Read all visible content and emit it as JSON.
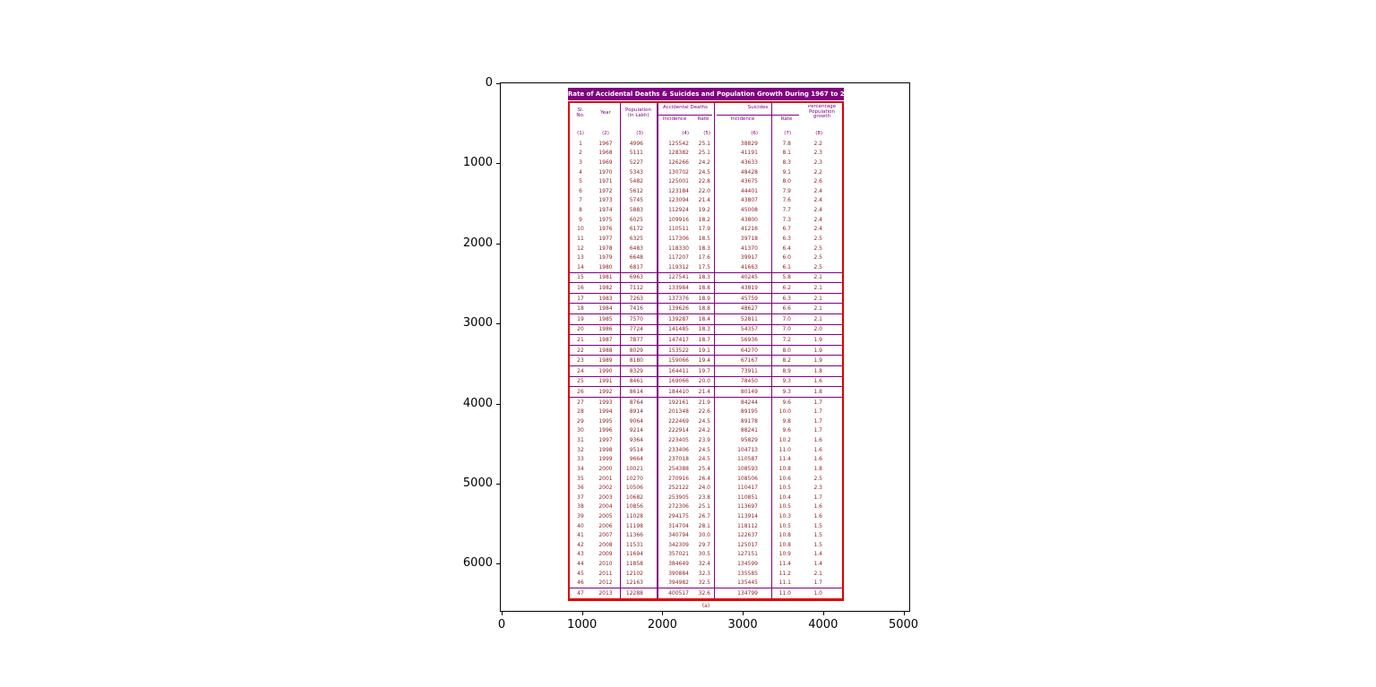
{
  "figure": {
    "background": "#ffffff",
    "axes": {
      "x_ticks": [
        "0",
        "1000",
        "2000",
        "3000",
        "4000",
        "5000"
      ],
      "y_ticks": [
        "0",
        "1000",
        "2000",
        "3000",
        "4000",
        "5000",
        "6000"
      ]
    }
  },
  "table": {
    "caption": "(a)",
    "colors": {
      "title_bg": "#800080",
      "title_text": "#ffffff",
      "outer_border": "#e00000",
      "grid_lines": "#800080",
      "data_text": "#8b1f1f",
      "header_text": "#800080"
    },
    "header": {
      "sl_no_l1": "Sl.",
      "sl_no_l2": "No.",
      "year": "Year",
      "population_l1": "Population",
      "population_l2": "(in Lakh)",
      "accidental_group": "Accidental Deaths",
      "suicides_group": "Suicides",
      "incidence_acc": "Incidence",
      "rate_acc": "Rate",
      "incidence_sui": "Incidence",
      "rate_sui": "Rate",
      "growth_l1": "Percentage",
      "growth_l2": "Population",
      "growth_l3": "growth",
      "col_numbers": [
        "(1)",
        "(2)",
        "(3)",
        "(4)",
        "(5)",
        "(6)",
        "(7)",
        "(8)"
      ]
    },
    "row_separators_below": [
      14,
      15,
      16,
      17,
      18,
      19,
      20,
      21,
      22,
      23,
      24,
      25,
      26
    ],
    "last_row_top_line": true
  },
  "chart_data": {
    "type": "table",
    "title": "Rate of Accidental Deaths & Suicides and Population Growth During 1967 to 2013",
    "columns": [
      "Sl. No.",
      "Year",
      "Population (in Lakh)",
      "Accidental Deaths Incidence",
      "Accidental Deaths Rate",
      "Suicides Incidence",
      "Suicides Rate",
      "Percentage Population growth"
    ],
    "x_axis_ticks": [
      0,
      1000,
      2000,
      3000,
      4000,
      5000
    ],
    "y_axis_ticks": [
      0,
      1000,
      2000,
      3000,
      4000,
      5000,
      6000
    ],
    "rows": [
      [
        "1",
        "1967",
        "4996",
        "125542",
        "25.1",
        "38829",
        "7.8",
        "2.2"
      ],
      [
        "2",
        "1968",
        "5111",
        "128382",
        "25.1",
        "41191",
        "8.1",
        "2.3"
      ],
      [
        "3",
        "1969",
        "5227",
        "126266",
        "24.2",
        "43633",
        "8.3",
        "2.3"
      ],
      [
        "4",
        "1970",
        "5343",
        "130702",
        "24.5",
        "48428",
        "9.1",
        "2.2"
      ],
      [
        "5",
        "1971",
        "5482",
        "125001",
        "22.8",
        "43675",
        "8.0",
        "2.6"
      ],
      [
        "6",
        "1972",
        "5612",
        "123184",
        "22.0",
        "44401",
        "7.9",
        "2.4"
      ],
      [
        "7",
        "1973",
        "5745",
        "123094",
        "21.4",
        "43807",
        "7.6",
        "2.4"
      ],
      [
        "8",
        "1974",
        "5883",
        "112924",
        "19.2",
        "45008",
        "7.7",
        "2.4"
      ],
      [
        "9",
        "1975",
        "6025",
        "109916",
        "18.2",
        "43800",
        "7.3",
        "2.4"
      ],
      [
        "10",
        "1976",
        "6172",
        "110511",
        "17.9",
        "41216",
        "6.7",
        "2.4"
      ],
      [
        "11",
        "1977",
        "6325",
        "117306",
        "18.5",
        "39718",
        "6.3",
        "2.5"
      ],
      [
        "12",
        "1978",
        "6483",
        "118330",
        "18.3",
        "41370",
        "6.4",
        "2.5"
      ],
      [
        "13",
        "1979",
        "6648",
        "117207",
        "17.6",
        "39917",
        "6.0",
        "2.5"
      ],
      [
        "14",
        "1980",
        "6817",
        "119312",
        "17.5",
        "41663",
        "6.1",
        "2.5"
      ],
      [
        "15",
        "1981",
        "6963",
        "127541",
        "18.3",
        "40245",
        "5.8",
        "2.1"
      ],
      [
        "16",
        "1982",
        "7112",
        "133984",
        "18.8",
        "43819",
        "6.2",
        "2.1"
      ],
      [
        "17",
        "1983",
        "7263",
        "137376",
        "18.9",
        "45759",
        "6.3",
        "2.1"
      ],
      [
        "18",
        "1984",
        "7416",
        "139626",
        "18.8",
        "48627",
        "6.6",
        "2.1"
      ],
      [
        "19",
        "1985",
        "7570",
        "139287",
        "18.4",
        "52811",
        "7.0",
        "2.1"
      ],
      [
        "20",
        "1986",
        "7724",
        "141485",
        "18.3",
        "54357",
        "7.0",
        "2.0"
      ],
      [
        "21",
        "1987",
        "7877",
        "147417",
        "18.7",
        "56936",
        "7.2",
        "1.9"
      ],
      [
        "22",
        "1988",
        "8029",
        "153522",
        "19.1",
        "64270",
        "8.0",
        "1.9"
      ],
      [
        "23",
        "1989",
        "8180",
        "159066",
        "19.4",
        "67167",
        "8.2",
        "1.9"
      ],
      [
        "24",
        "1990",
        "8329",
        "164411",
        "19.7",
        "73911",
        "8.9",
        "1.8"
      ],
      [
        "25",
        "1991",
        "8461",
        "169066",
        "20.0",
        "78450",
        "9.3",
        "1.6"
      ],
      [
        "26",
        "1992",
        "8614",
        "184410",
        "21.4",
        "80149",
        "9.3",
        "1.8"
      ],
      [
        "27",
        "1993",
        "8764",
        "192161",
        "21.9",
        "84244",
        "9.6",
        "1.7"
      ],
      [
        "28",
        "1994",
        "8914",
        "201348",
        "22.6",
        "89195",
        "10.0",
        "1.7"
      ],
      [
        "29",
        "1995",
        "9064",
        "222469",
        "24.5",
        "89178",
        "9.8",
        "1.7"
      ],
      [
        "30",
        "1996",
        "9214",
        "222914",
        "24.2",
        "88241",
        "9.6",
        "1.7"
      ],
      [
        "31",
        "1997",
        "9364",
        "223405",
        "23.9",
        "95829",
        "10.2",
        "1.6"
      ],
      [
        "32",
        "1998",
        "9514",
        "233406",
        "24.5",
        "104713",
        "11.0",
        "1.6"
      ],
      [
        "33",
        "1999",
        "9664",
        "237018",
        "24.5",
        "110587",
        "11.4",
        "1.6"
      ],
      [
        "34",
        "2000",
        "10021",
        "254388",
        "25.4",
        "108593",
        "10.8",
        "1.8"
      ],
      [
        "35",
        "2001",
        "10270",
        "270916",
        "26.4",
        "108506",
        "10.6",
        "2.5"
      ],
      [
        "36",
        "2002",
        "10506",
        "252122",
        "24.0",
        "110417",
        "10.5",
        "2.3"
      ],
      [
        "37",
        "2003",
        "10682",
        "253905",
        "23.8",
        "110851",
        "10.4",
        "1.7"
      ],
      [
        "38",
        "2004",
        "10856",
        "272306",
        "25.1",
        "113697",
        "10.5",
        "1.6"
      ],
      [
        "39",
        "2005",
        "11028",
        "294175",
        "26.7",
        "113914",
        "10.3",
        "1.6"
      ],
      [
        "40",
        "2006",
        "11198",
        "314704",
        "28.1",
        "118112",
        "10.5",
        "1.5"
      ],
      [
        "41",
        "2007",
        "11366",
        "340794",
        "30.0",
        "122637",
        "10.8",
        "1.5"
      ],
      [
        "42",
        "2008",
        "11531",
        "342309",
        "29.7",
        "125017",
        "10.8",
        "1.5"
      ],
      [
        "43",
        "2009",
        "11694",
        "357021",
        "30.5",
        "127151",
        "10.9",
        "1.4"
      ],
      [
        "44",
        "2010",
        "11858",
        "384649",
        "32.4",
        "134599",
        "11.4",
        "1.4"
      ],
      [
        "45",
        "2011",
        "12102",
        "390884",
        "32.3",
        "135585",
        "11.2",
        "2.1"
      ],
      [
        "46",
        "2012",
        "12163",
        "394982",
        "32.5",
        "135445",
        "11.1",
        "1.7"
      ],
      [
        "47",
        "2013",
        "12288",
        "400517",
        "32.6",
        "134799",
        "11.0",
        "1.0"
      ]
    ]
  }
}
